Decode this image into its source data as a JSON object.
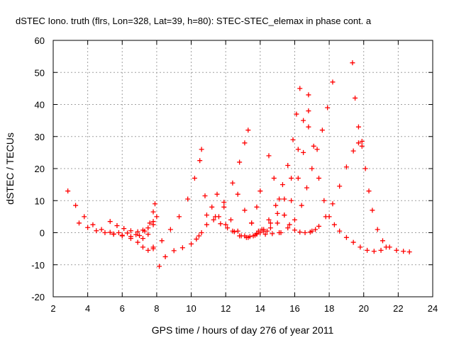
{
  "chart_data": {
    "type": "scatter",
    "title": "dSTEC Iono. truth (flrs, Lon=328, Lat=39, h=80): STEC-STEC_elemax in phase cont. a",
    "xlabel": "GPS time / hours of day 276 of year 2011",
    "ylabel": "dSTEC  / TECUs",
    "xlim": [
      2,
      24
    ],
    "ylim": [
      -20,
      60
    ],
    "xticks": [
      "2",
      "4",
      "6",
      "8",
      "10",
      "12",
      "14",
      "16",
      "18",
      "20",
      "22",
      "24"
    ],
    "yticks": [
      "-20",
      "-10",
      "0",
      "10",
      "20",
      "30",
      "40",
      "50",
      "60"
    ],
    "grid": true,
    "marker": "+",
    "color": "#ff0000",
    "series": [
      {
        "x": [
          2.85,
          3.3,
          3.8,
          4.3,
          4.8,
          5.3,
          5.8,
          6.3,
          6.8,
          7.2,
          7.5,
          7.8,
          8.0
        ],
        "y": [
          13,
          8.5,
          5,
          2.5,
          1,
          0.1,
          0,
          -0.1,
          -0.6,
          -1.8,
          -0.5,
          2.5,
          5
        ]
      },
      {
        "x": [
          3.5,
          4.0,
          4.5,
          5.0,
          5.5,
          6.0,
          6.5,
          7.0,
          7.3,
          7.6,
          7.8,
          7.9
        ],
        "y": [
          3,
          1.6,
          0.6,
          0,
          -0.5,
          -0.8,
          -1.2,
          -0.9,
          0.5,
          3,
          6.5,
          9
        ]
      },
      {
        "x": [
          5.3,
          5.7,
          6.1,
          6.5,
          6.9,
          7.2,
          7.5,
          7.8
        ],
        "y": [
          3.5,
          2.2,
          1.3,
          0.6,
          0.3,
          0.8,
          1.5,
          3.5
        ]
      },
      {
        "x": [
          5.5,
          6.0,
          6.5,
          6.9,
          7.2,
          7.5,
          7.8
        ],
        "y": [
          -0.4,
          -1.0,
          -1.8,
          -3.0,
          -4.5,
          -5.5,
          -4.5
        ]
      },
      {
        "x": [
          8.15,
          8.5,
          9.0,
          9.5,
          10.0,
          10.3,
          10.45,
          10.6
        ],
        "y": [
          -10.5,
          -7.5,
          -5.6,
          -4.7,
          -3.5,
          -2.0,
          -1.0,
          0
        ]
      },
      {
        "x": [
          7.8,
          8.3,
          8.8,
          9.3,
          9.8,
          10.2,
          10.5,
          10.6
        ],
        "y": [
          -5,
          -2.5,
          1,
          5,
          10.5,
          17,
          22.5,
          26
        ]
      },
      {
        "x": [
          10.8,
          11.2,
          11.6,
          12.0,
          12.4,
          12.8,
          13.2,
          13.6,
          14.0,
          14.4
        ],
        "y": [
          11.5,
          8,
          5,
          2.5,
          0.5,
          -1.0,
          -1.5,
          -1.0,
          0,
          0.5
        ]
      },
      {
        "x": [
          10.9,
          11.3,
          11.7,
          12.1,
          12.5,
          12.9
        ],
        "y": [
          5.5,
          4,
          2.8,
          1.5,
          0.3,
          -1.0
        ]
      },
      {
        "x": [
          11.5,
          11.9,
          12.3,
          12.7,
          13.1,
          13.5,
          13.8,
          14.0
        ],
        "y": [
          12,
          8,
          4,
          0.5,
          -1.0,
          3,
          8,
          13
        ]
      },
      {
        "x": [
          10.9,
          11.4,
          11.9,
          12.4,
          12.8,
          13.1,
          13.3
        ],
        "y": [
          2.5,
          5,
          9.5,
          15.5,
          22,
          28,
          32
        ]
      },
      {
        "x": [
          12.7,
          13.1,
          13.5,
          13.9,
          14.3,
          14.7,
          15.1
        ],
        "y": [
          12,
          7,
          3,
          0.5,
          -0.5,
          -0.3,
          0
        ]
      },
      {
        "x": [
          14.5,
          14.8,
          15.1,
          15.4,
          15.7,
          16.0,
          16.3,
          16.6,
          16.9,
          17.2
        ],
        "y": [
          24,
          17,
          10.5,
          5.5,
          2.5,
          0.8,
          0.2,
          0,
          0.2,
          1
        ]
      },
      {
        "x": [
          13.3,
          13.7,
          14.1,
          14.5,
          14.9,
          15.3,
          15.6,
          15.9,
          16.1,
          16.3
        ],
        "y": [
          -1.5,
          -0.8,
          1,
          4,
          8.5,
          15,
          21,
          29,
          37,
          45
        ]
      },
      {
        "x": [
          13.4,
          13.8,
          14.2,
          14.6,
          15.0,
          15.4,
          15.8,
          16.2,
          16.5,
          16.8
        ],
        "y": [
          -1.2,
          -0.5,
          0.5,
          1.5,
          3,
          5.5,
          10,
          17,
          25,
          33
        ]
      },
      {
        "x": [
          13.8,
          14.2,
          14.6,
          15.0,
          15.4,
          15.8,
          16.2,
          16.5,
          16.8
        ],
        "y": [
          -0.2,
          1,
          3,
          6,
          10.5,
          17,
          26,
          35,
          43
        ]
      },
      {
        "x": [
          15.2,
          15.6,
          16.0,
          16.4,
          16.7,
          17.0,
          17.3,
          17.6,
          17.9,
          18.2
        ],
        "y": [
          0,
          1.5,
          4,
          8.5,
          14,
          20,
          26,
          32,
          39,
          47
        ]
      },
      {
        "x": [
          16.8,
          17.1,
          17.4,
          17.7,
          18.0,
          18.3,
          18.6,
          19.0,
          19.4,
          19.8,
          20.2,
          20.6,
          21.0,
          21.3
        ],
        "y": [
          38,
          27,
          17,
          10,
          5,
          2.5,
          0.5,
          -1.5,
          -3,
          -4.5,
          -5.5,
          -5.8,
          -5.5,
          -4.5
        ]
      },
      {
        "x": [
          17.0,
          17.4,
          17.8,
          18.2,
          18.6,
          19.0,
          19.4,
          19.7,
          19.9
        ],
        "y": [
          0.5,
          2,
          5,
          9,
          14.5,
          20.5,
          25.5,
          28,
          28.5
        ]
      },
      {
        "x": [
          19.35,
          19.5,
          19.7,
          19.9,
          20.1,
          20.3,
          20.5,
          20.8,
          21.1,
          21.5,
          21.9,
          22.3,
          22.65
        ],
        "y": [
          53,
          42,
          33,
          27,
          20,
          13,
          7,
          1,
          -2.5,
          -4.5,
          -5.5,
          -5.8,
          -6
        ]
      }
    ]
  }
}
